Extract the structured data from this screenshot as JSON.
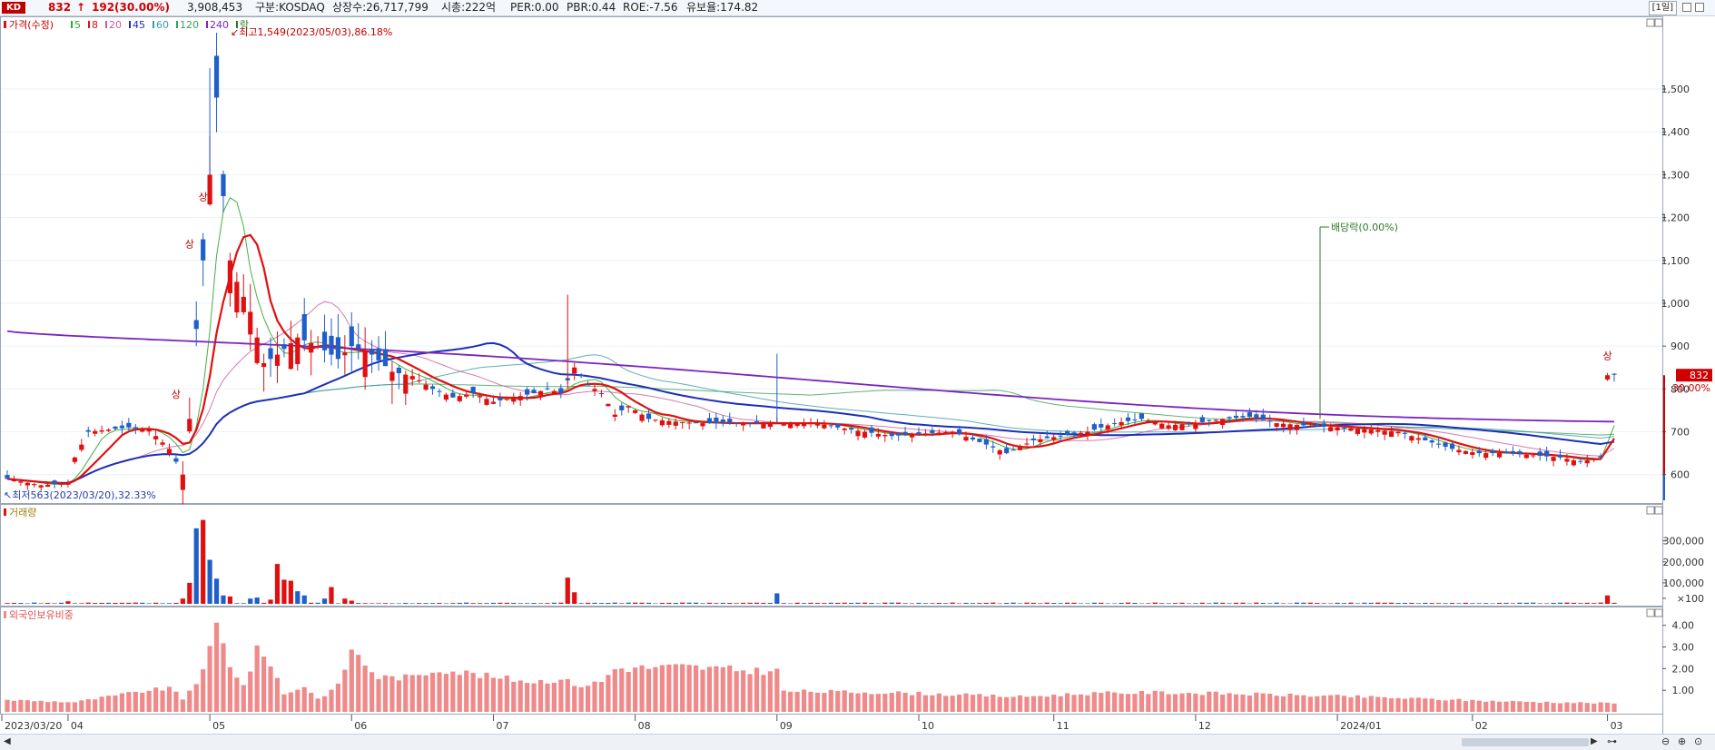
{
  "header": {
    "code": "KD",
    "price": "832",
    "change_arrow": "↑",
    "change": "192",
    "change_pct": "(30.00%)",
    "volume": "3,908,453",
    "market": "구분:KOSDAQ",
    "shares": "상장수:26,717,799",
    "mcap": "시총:222억",
    "per": "PER:0.00",
    "pbr": "PBR:0.44",
    "roe": "ROE:-7.56",
    "float": "유보율:174.82",
    "period": "[1일]"
  },
  "colors": {
    "up": "#e01010",
    "down": "#1f5fc8",
    "ma5": "#2eaa2e",
    "ma8": "#e01010",
    "ma20": "#c85aa0",
    "ma45": "#1c2fb8",
    "ma60": "#3a9aa8",
    "ma120": "#39a05a",
    "ma240": "#7a24c0",
    "foreign": "#f08a8a"
  },
  "chart_data": [
    {
      "type": "candlestick",
      "title": "가격(수정)",
      "legend": [
        "5",
        "8",
        "20",
        "45",
        "60",
        "120",
        "240",
        "락"
      ],
      "ylim": [
        540,
        1640
      ],
      "y_ticks": [
        600,
        700,
        800,
        900,
        "1,000",
        "1,100",
        "1,200",
        "1,300",
        "1,400",
        "1,500"
      ],
      "y_tick_values": [
        600,
        700,
        800,
        900,
        1000,
        1100,
        1200,
        1300,
        1400,
        1500
      ],
      "x_tick_labels": [
        "2023/03/20",
        "04",
        "05",
        "06",
        "07",
        "08",
        "09",
        "10",
        "11",
        "12",
        "2024/01",
        "02",
        "03"
      ],
      "x_tick_index": [
        0,
        9,
        30,
        51,
        72,
        93,
        114,
        135,
        155,
        176,
        197,
        217,
        237
      ],
      "n_sessions": 239,
      "anchors": [
        [
          0,
          590
        ],
        [
          5,
          575
        ],
        [
          9,
          580
        ],
        [
          10,
          640
        ],
        [
          12,
          700
        ],
        [
          15,
          705
        ],
        [
          18,
          710
        ],
        [
          21,
          705
        ],
        [
          24,
          660
        ],
        [
          26,
          600
        ],
        [
          27,
          730
        ],
        [
          28,
          940
        ],
        [
          29,
          1100
        ],
        [
          30,
          1300
        ],
        [
          31,
          1480
        ],
        [
          32,
          1250
        ],
        [
          33,
          1100
        ],
        [
          34,
          1050
        ],
        [
          36,
          980
        ],
        [
          38,
          860
        ],
        [
          40,
          880
        ],
        [
          43,
          920
        ],
        [
          46,
          900
        ],
        [
          49,
          870
        ],
        [
          51,
          900
        ],
        [
          54,
          880
        ],
        [
          57,
          840
        ],
        [
          60,
          830
        ],
        [
          63,
          800
        ],
        [
          66,
          780
        ],
        [
          69,
          790
        ],
        [
          72,
          770
        ],
        [
          75,
          780
        ],
        [
          78,
          790
        ],
        [
          80,
          800
        ],
        [
          82,
          790
        ],
        [
          84,
          850
        ],
        [
          86,
          810
        ],
        [
          88,
          790
        ],
        [
          90,
          740
        ],
        [
          92,
          760
        ],
        [
          95,
          730
        ],
        [
          98,
          725
        ],
        [
          102,
          720
        ],
        [
          106,
          720
        ],
        [
          110,
          720
        ],
        [
          114,
          720
        ],
        [
          118,
          720
        ],
        [
          120,
          720
        ],
        [
          123,
          710
        ],
        [
          127,
          700
        ],
        [
          131,
          690
        ],
        [
          135,
          695
        ],
        [
          140,
          700
        ],
        [
          145,
          670
        ],
        [
          148,
          650
        ],
        [
          152,
          680
        ],
        [
          156,
          690
        ],
        [
          160,
          700
        ],
        [
          164,
          720
        ],
        [
          168,
          730
        ],
        [
          172,
          715
        ],
        [
          176,
          720
        ],
        [
          180,
          730
        ],
        [
          184,
          735
        ],
        [
          188,
          720
        ],
        [
          192,
          715
        ],
        [
          197,
          710
        ],
        [
          202,
          705
        ],
        [
          206,
          700
        ],
        [
          210,
          680
        ],
        [
          214,
          660
        ],
        [
          218,
          650
        ],
        [
          222,
          650
        ],
        [
          226,
          645
        ],
        [
          230,
          640
        ],
        [
          233,
          630
        ],
        [
          236,
          640
        ],
        [
          237,
          832
        ]
      ],
      "notes": {
        "high": "최고1,549(2023/05/03),86.18%",
        "low": "최저563(2023/03/20),32.33%",
        "ex_dividend": "배당락(0.00%)",
        "limit_up": "상"
      },
      "current_price_label": "832",
      "current_pct_label": "30.00%"
    },
    {
      "type": "bar",
      "title": "거래량",
      "y_ticks": [
        "300,000",
        "200,000",
        "100,000",
        "×100"
      ],
      "y_tick_values": [
        300000,
        200000,
        100000,
        0
      ],
      "ylim": [
        0,
        420000
      ],
      "spikes": [
        [
          9,
          12000
        ],
        [
          26,
          25000
        ],
        [
          27,
          100000
        ],
        [
          28,
          360000
        ],
        [
          29,
          400000
        ],
        [
          30,
          210000
        ],
        [
          31,
          120000
        ],
        [
          32,
          40000
        ],
        [
          33,
          35000
        ],
        [
          36,
          25000
        ],
        [
          37,
          30000
        ],
        [
          39,
          20000
        ],
        [
          40,
          190000
        ],
        [
          41,
          115000
        ],
        [
          42,
          110000
        ],
        [
          43,
          60000
        ],
        [
          44,
          40000
        ],
        [
          47,
          25000
        ],
        [
          48,
          80000
        ],
        [
          50,
          25000
        ],
        [
          51,
          15000
        ],
        [
          83,
          125000
        ],
        [
          84,
          55000
        ],
        [
          114,
          50000
        ],
        [
          237,
          40000
        ]
      ]
    },
    {
      "type": "bar",
      "title": "외국인보유비중",
      "y_ticks": [
        "4.00",
        "3.00",
        "2.00",
        "1.00"
      ],
      "y_tick_values": [
        4,
        3,
        2,
        1
      ],
      "ylim": [
        0,
        4.45
      ],
      "anchors": [
        [
          0,
          0.55
        ],
        [
          10,
          0.45
        ],
        [
          20,
          0.95
        ],
        [
          24,
          1.1
        ],
        [
          26,
          0.6
        ],
        [
          29,
          1.8
        ],
        [
          31,
          4.0
        ],
        [
          33,
          2.2
        ],
        [
          35,
          1.2
        ],
        [
          37,
          2.8
        ],
        [
          39,
          2.3
        ],
        [
          41,
          0.8
        ],
        [
          44,
          1.2
        ],
        [
          46,
          0.6
        ],
        [
          49,
          1.2
        ],
        [
          51,
          2.9
        ],
        [
          53,
          2.2
        ],
        [
          55,
          1.6
        ],
        [
          60,
          1.6
        ],
        [
          64,
          2.0
        ],
        [
          72,
          1.6
        ],
        [
          78,
          1.4
        ],
        [
          82,
          1.5
        ],
        [
          85,
          1.2
        ],
        [
          88,
          1.4
        ],
        [
          90,
          2.0
        ],
        [
          100,
          2.1
        ],
        [
          110,
          1.9
        ],
        [
          114,
          1.9
        ],
        [
          115,
          0.95
        ],
        [
          130,
          0.9
        ],
        [
          150,
          0.7
        ],
        [
          160,
          0.85
        ],
        [
          170,
          0.9
        ],
        [
          180,
          0.85
        ],
        [
          200,
          0.7
        ],
        [
          220,
          0.5
        ],
        [
          237,
          0.4
        ]
      ]
    }
  ]
}
